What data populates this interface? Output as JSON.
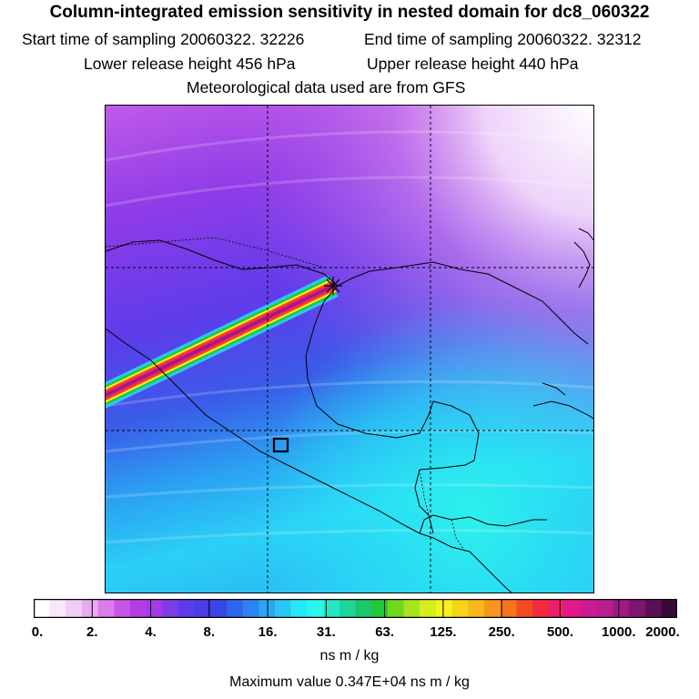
{
  "header": {
    "title": "Column-integrated emission sensitivity in nested domain for dc8_060322",
    "start_label": "Start time of sampling 20060322. 32226",
    "end_label": "End time of sampling 20060322. 32312",
    "lower_label": "Lower release height  456 hPa",
    "upper_label": "Upper release height  440 hPa",
    "met_label": "Meteorological data used are from GFS"
  },
  "colorbar": {
    "tick_labels": [
      "0.",
      "2.",
      "4.",
      "8.",
      "16.",
      "31.",
      "63.",
      "125.",
      "250.",
      "500.",
      "1000.",
      "2000."
    ],
    "colors": [
      "#ffffff",
      "#f9e6fb",
      "#f1cdf6",
      "#e7abf1",
      "#d97cec",
      "#c855e6",
      "#b53ce4",
      "#a33be6",
      "#7e3ce8",
      "#5f3aea",
      "#4b3ce6",
      "#3a45e8",
      "#2f64ec",
      "#2b84f0",
      "#2aa6f3",
      "#2bc7f4",
      "#29e6f6",
      "#2cf6ea",
      "#22e8c4",
      "#1fd49a",
      "#1cc66a",
      "#22c83a",
      "#6ed81c",
      "#a6e41e",
      "#d6ef1c",
      "#f6f01c",
      "#f6d41a",
      "#f8b81a",
      "#f7961c",
      "#f6741e",
      "#f44c22",
      "#f22c3c",
      "#ec1e6a",
      "#e01a88",
      "#cd1a92",
      "#ba1d8e",
      "#9c1a82",
      "#7e1670",
      "#5c1054",
      "#3a0a36"
    ],
    "unit_label": "ns m / kg",
    "max_label": "Maximum value  0.347E+04 ns m / kg"
  },
  "map": {
    "source_marker": "asterisk",
    "receptor_marker": "square",
    "plume_colors": [
      "#2bc7f4",
      "#22c83a",
      "#f6f01c",
      "#f44c22",
      "#ec1e6a",
      "#9c1a82"
    ]
  }
}
